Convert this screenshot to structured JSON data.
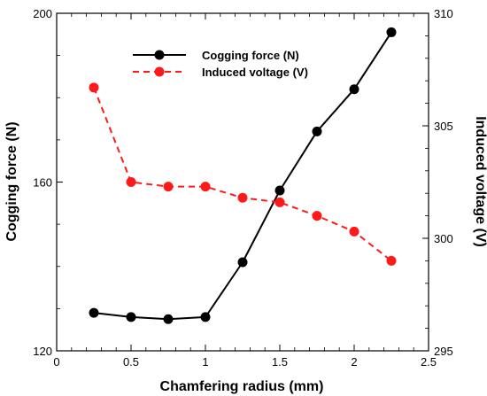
{
  "chart_data": {
    "type": "line",
    "xlabel": "Chamfering radius (mm)",
    "ylabel_left": "Cogging force (N)",
    "ylabel_right": "Induced voltage (V)",
    "xlim": [
      0,
      2.5
    ],
    "ylim_left": [
      120,
      200
    ],
    "ylim_right": [
      295,
      310
    ],
    "x_ticks": [
      "0",
      "0.5",
      "1",
      "1.5",
      "2",
      "2.5"
    ],
    "y_left_ticks": [
      "120",
      "160",
      "200"
    ],
    "y_right_ticks": [
      "295",
      "300",
      "305",
      "310"
    ],
    "grid": false,
    "legend_position": "top-center",
    "series": [
      {
        "name": "Cogging force (N)",
        "axis": "left",
        "color": "#000000",
        "line_style": "solid",
        "x": [
          0.25,
          0.5,
          0.75,
          1.0,
          1.25,
          1.5,
          1.75,
          2.0,
          2.25
        ],
        "y": [
          129.0,
          128.0,
          127.5,
          128.0,
          141.0,
          158.0,
          172.0,
          182.0,
          195.5
        ]
      },
      {
        "name": "Induced voltage (V)",
        "axis": "right",
        "color": "#ff1a1a",
        "line_style": "dashed",
        "x": [
          0.25,
          0.5,
          0.75,
          1.0,
          1.25,
          1.5,
          1.75,
          2.0,
          2.25
        ],
        "y": [
          306.7,
          302.5,
          302.3,
          302.3,
          301.8,
          301.6,
          301.0,
          300.3,
          299.0
        ]
      }
    ]
  }
}
